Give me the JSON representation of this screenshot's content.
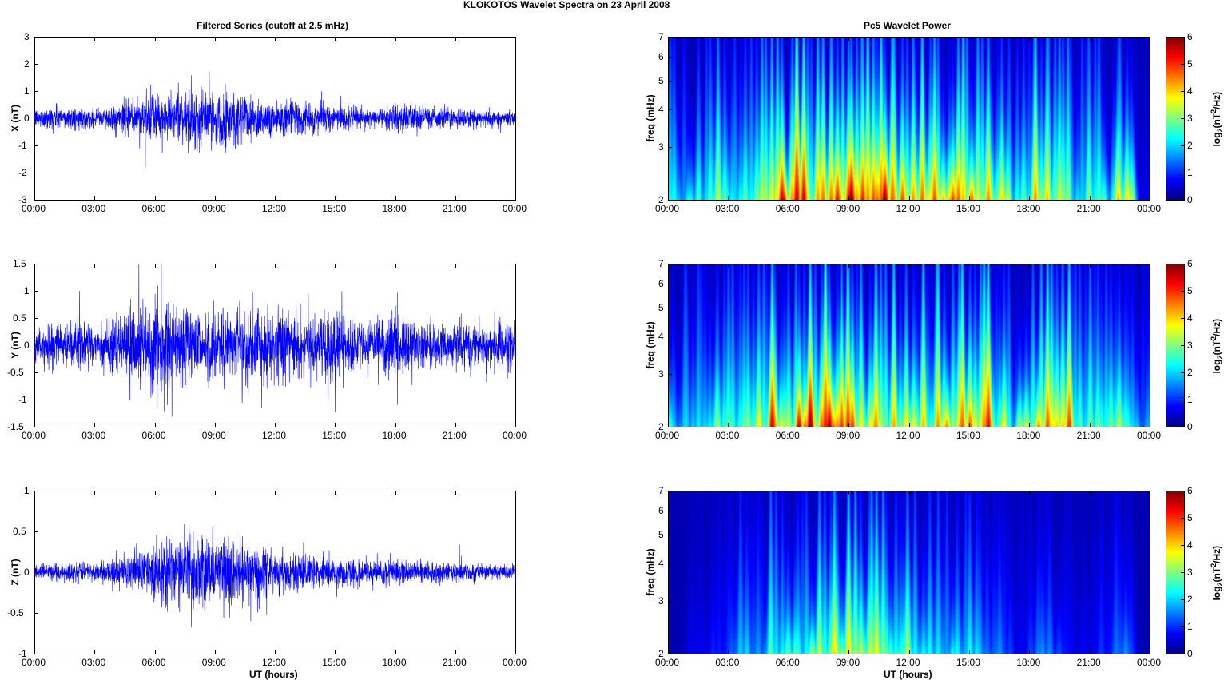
{
  "figure_title": "KLOKOTOS Wavelet Spectra on 23 April     2008",
  "left_title": "Filtered Series (cutoff at 2.5 mHz)",
  "right_title": "Pc5 Wavelet Power",
  "xlabel": "UT (hours)",
  "x_ticks": [
    "00:00",
    "03:00",
    "06:00",
    "09:00",
    "12:00",
    "15:00",
    "18:00",
    "21:00",
    "00:00"
  ],
  "colors": {
    "line": "#0000ff",
    "axis": "#000000"
  },
  "chart_data": [
    {
      "type": "line",
      "id": "x-series",
      "ylabel": "X (nT)",
      "ylim": [
        -3,
        3
      ],
      "yticks": [
        "3",
        "2",
        "1",
        "0",
        "-1",
        "-2",
        "-3"
      ],
      "yvals": [
        3,
        2,
        1,
        0,
        -1,
        -2,
        -3
      ],
      "xlim_hours": [
        0,
        24
      ],
      "envelope_nT_per_hour": [
        0.4,
        0.6,
        0.5,
        0.4,
        0.6,
        1.0,
        1.1,
        0.9,
        1.4,
        1.2,
        1.5,
        1.0,
        0.9,
        0.8,
        0.7,
        0.6,
        0.5,
        0.4,
        0.7,
        0.6,
        0.5,
        0.5,
        0.4,
        0.4
      ]
    },
    {
      "type": "line",
      "id": "y-series",
      "ylabel": "Y (nT)",
      "ylim": [
        -1.5,
        1.5
      ],
      "yticks": [
        "1.5",
        "1",
        "0.5",
        "0",
        "-0.5",
        "-1",
        "-1.5"
      ],
      "yvals": [
        1.5,
        1,
        0.5,
        0,
        -0.5,
        -1,
        -1.5
      ],
      "xlim_hours": [
        0,
        24
      ],
      "envelope_nT_per_hour": [
        0.4,
        0.5,
        0.5,
        0.5,
        0.7,
        1.0,
        1.1,
        1.0,
        0.8,
        0.9,
        0.8,
        0.9,
        0.8,
        0.8,
        0.7,
        0.9,
        0.6,
        0.5,
        0.8,
        0.6,
        0.5,
        0.5,
        0.5,
        0.5
      ]
    },
    {
      "type": "line",
      "id": "z-series",
      "ylabel": "Z (nT)",
      "ylim": [
        -1,
        1
      ],
      "yticks": [
        "1",
        "0.5",
        "0",
        "-0.5",
        "-1"
      ],
      "yvals": [
        1,
        0.5,
        0,
        -0.5,
        -1
      ],
      "xlim_hours": [
        0,
        24
      ],
      "envelope_nT_per_hour": [
        0.1,
        0.15,
        0.15,
        0.15,
        0.2,
        0.4,
        0.45,
        0.5,
        0.6,
        0.55,
        0.5,
        0.45,
        0.35,
        0.3,
        0.25,
        0.25,
        0.2,
        0.2,
        0.2,
        0.18,
        0.15,
        0.15,
        0.15,
        0.12
      ]
    },
    {
      "type": "heatmap",
      "id": "x-power",
      "ylabel": "freq (mHz)",
      "ylim": [
        2,
        7
      ],
      "yscale": "log",
      "yticks": [
        "7",
        "6",
        "5",
        "4",
        "3",
        "2"
      ],
      "yvals": [
        7,
        6,
        5,
        4,
        3,
        2
      ],
      "clim": [
        0,
        6
      ],
      "cbar_ticks": [
        "6",
        "5",
        "4",
        "3",
        "2",
        "1",
        "0"
      ],
      "cbar_label": "log2(nT²/Hz)",
      "power_log2_per_hour": [
        2.5,
        3,
        3.5,
        3,
        3.5,
        6,
        5.5,
        5,
        6,
        6,
        6,
        5,
        5.5,
        5,
        5.5,
        5,
        4.5,
        3,
        5,
        3.5,
        3,
        3.5,
        4,
        0.5
      ]
    },
    {
      "type": "heatmap",
      "id": "y-power",
      "ylabel": "freq (mHz)",
      "ylim": [
        2,
        7
      ],
      "yscale": "log",
      "yticks": [
        "7",
        "6",
        "5",
        "4",
        "3",
        "2"
      ],
      "yvals": [
        7,
        6,
        5,
        4,
        3,
        2
      ],
      "clim": [
        0,
        6
      ],
      "cbar_ticks": [
        "6",
        "5",
        "4",
        "3",
        "2",
        "1",
        "0"
      ],
      "cbar_label": "log2(nT²/Hz)",
      "power_log2_per_hour": [
        2.5,
        3,
        3.5,
        3.5,
        4,
        6,
        5.5,
        6,
        6,
        5,
        5,
        5,
        4.5,
        4.5,
        5,
        5.5,
        4,
        3.5,
        5.5,
        5,
        3.5,
        3,
        3.5,
        2
      ]
    },
    {
      "type": "heatmap",
      "id": "z-power",
      "ylabel": "freq (mHz)",
      "ylim": [
        2,
        7
      ],
      "yscale": "log",
      "yticks": [
        "7",
        "6",
        "5",
        "4",
        "3",
        "2"
      ],
      "yvals": [
        7,
        6,
        5,
        4,
        3,
        2
      ],
      "clim": [
        0,
        6
      ],
      "cbar_ticks": [
        "6",
        "5",
        "4",
        "3",
        "2",
        "1",
        "0"
      ],
      "cbar_label": "log2(nT²/Hz)",
      "power_log2_per_hour": [
        0,
        0.5,
        1,
        2,
        1.5,
        3,
        3,
        3.5,
        4,
        3.5,
        4,
        3.5,
        2.5,
        2.5,
        2.5,
        2,
        1.5,
        0.5,
        1.5,
        1,
        0.5,
        1,
        1.5,
        0
      ]
    }
  ]
}
